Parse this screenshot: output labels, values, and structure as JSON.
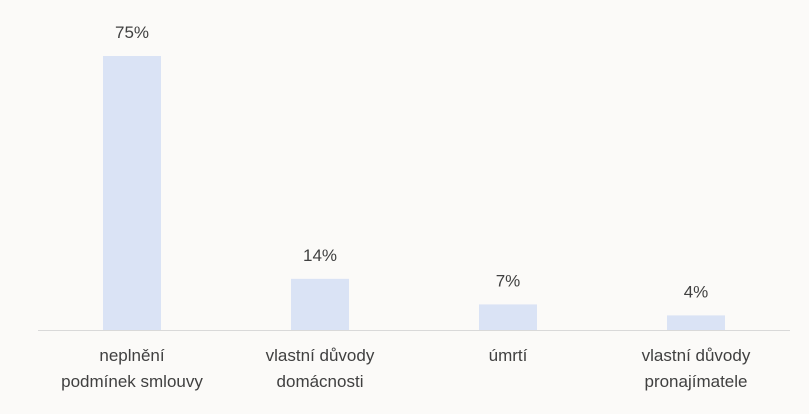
{
  "chart_data": {
    "type": "bar",
    "categories": [
      "neplnění\npodmínek smlouvy",
      "vlastní důvody\ndomácnosti",
      "úmrtí",
      "vlastní důvody\npronajímatele"
    ],
    "values": [
      75,
      14,
      7,
      4
    ],
    "value_labels": [
      "75%",
      "14%",
      "7%",
      "4%"
    ],
    "color": "#dae3f5"
  }
}
